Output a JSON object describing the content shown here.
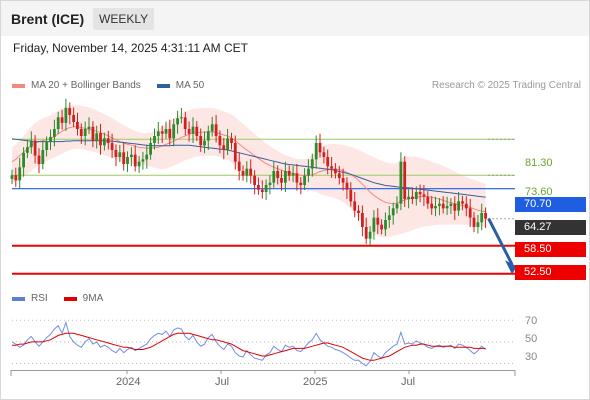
{
  "header": {
    "instrument": "Brent (ICE)",
    "timeframe": "WEEKLY"
  },
  "timestamp": "Friday, November 14, 2025 4:31:11 AM CET",
  "legend": {
    "items": [
      {
        "label": "MA 20 + Bollinger Bands",
        "color": "#f08a80"
      },
      {
        "label": "MA 50",
        "color": "#2f5f9e"
      }
    ],
    "copyright": "Research © 2025 Trading Central"
  },
  "rsi_legend": {
    "items": [
      {
        "label": "RSI",
        "color": "#5b7fd4"
      },
      {
        "label": "9MA",
        "color": "#e00000"
      }
    ]
  },
  "colors": {
    "up": "#2d8a2d",
    "down": "#d22020",
    "support": "#ee0000",
    "resistance": "#1f5ee0",
    "arrow": "#2a5fa8"
  },
  "chart_data": [
    {
      "type": "candlestick",
      "ylim": [
        50.5,
        88
      ],
      "x_ticks": [
        "2024",
        "Jul",
        "2025",
        "Jul"
      ],
      "levels": [
        {
          "label": "81.30",
          "value": 81.3,
          "kind": "target"
        },
        {
          "label": "73.60",
          "value": 73.6,
          "kind": "target"
        },
        {
          "label": "70.70",
          "value": 70.7,
          "kind": "pivot"
        },
        {
          "label": "64.27",
          "value": 64.27,
          "kind": "last"
        },
        {
          "label": "58.50",
          "value": 58.5,
          "kind": "support"
        },
        {
          "label": "52.50",
          "value": 52.5,
          "kind": "support"
        }
      ],
      "arrow": {
        "direction": "down",
        "from_value": 64.3,
        "to_value": 52.8
      },
      "close": [
        73.6,
        72.5,
        75.3,
        78.4,
        79.6,
        81.0,
        77.8,
        76.0,
        79.0,
        80.7,
        81.8,
        83.5,
        86.0,
        84.8,
        88.0,
        86.5,
        85.0,
        83.5,
        82.0,
        83.5,
        84.0,
        81.0,
        82.6,
        80.0,
        81.5,
        80.5,
        79.0,
        77.5,
        78.5,
        76.0,
        77.5,
        78.0,
        75.5,
        76.5,
        77.0,
        78.0,
        80.5,
        82.0,
        83.0,
        82.5,
        83.5,
        81.5,
        84.5,
        85.8,
        86.0,
        83.5,
        82.5,
        84.0,
        82.0,
        80.0,
        81.0,
        83.0,
        84.5,
        82.0,
        80.0,
        79.0,
        81.5,
        80.5,
        76.5,
        74.5,
        73.5,
        75.0,
        73.5,
        71.5,
        70.5,
        70.0,
        71.5,
        72.0,
        74.5,
        73.0,
        72.0,
        74.5,
        73.5,
        74.0,
        72.0,
        71.5,
        73.5,
        75.0,
        77.0,
        80.5,
        78.5,
        77.5,
        75.5,
        75.0,
        74.0,
        73.0,
        72.0,
        70.5,
        68.0,
        66.0,
        65.5,
        62.5,
        60.0,
        61.5,
        64.5,
        63.0,
        62.0,
        64.0,
        65.0,
        66.5,
        67.5,
        76.5,
        68.5,
        69.0,
        68.5,
        70.0,
        69.5,
        69.0,
        67.5,
        66.5,
        67.0,
        67.5,
        66.5,
        67.0,
        67.5,
        66.0,
        68.0,
        67.5,
        66.5,
        64.5,
        62.5,
        63.5,
        65.5,
        64.27
      ],
      "ma20": [
        76.5,
        77.0,
        77.8,
        78.5,
        79.2,
        80.0,
        80.5,
        80.8,
        81.0,
        81.2,
        81.5,
        81.8,
        82.5,
        83.0,
        83.5,
        83.8,
        84.0,
        84.0,
        83.8,
        83.6,
        83.4,
        83.2,
        83.0,
        82.7,
        82.4,
        82.0,
        81.6,
        81.2,
        80.8,
        80.5,
        80.2,
        80.0,
        79.8,
        79.6,
        79.5,
        79.4,
        79.4,
        79.5,
        79.6,
        79.9,
        80.2,
        80.5,
        80.9,
        81.3,
        81.7,
        82.0,
        82.4,
        82.6,
        82.7,
        82.8,
        82.8,
        82.9,
        82.9,
        82.7,
        82.5,
        82.2,
        82.0,
        81.6,
        81.0,
        80.3,
        79.6,
        79.0,
        78.4,
        77.8,
        77.2,
        76.6,
        76.1,
        75.7,
        75.3,
        75.0,
        74.7,
        74.4,
        74.2,
        74.0,
        73.8,
        73.6,
        73.5,
        73.6,
        73.7,
        74.0,
        74.4,
        74.6,
        74.8,
        74.9,
        74.9,
        74.8,
        74.6,
        74.2,
        73.8,
        73.2,
        72.5,
        71.7,
        70.8,
        70.0,
        69.3,
        68.7,
        68.2,
        67.8,
        67.6,
        67.5,
        67.6,
        68.0,
        68.3,
        68.5,
        68.7,
        68.9,
        69.0,
        69.1,
        69.0,
        68.9,
        68.7,
        68.5,
        68.2,
        67.9,
        67.7,
        67.5,
        67.3,
        67.1,
        66.9,
        66.7,
        66.4,
        66.1,
        65.9,
        65.8
      ],
      "bb_upper": [
        79.5,
        80.2,
        81.0,
        82.0,
        83.0,
        84.0,
        84.8,
        85.4,
        85.8,
        86.1,
        86.4,
        86.8,
        87.4,
        87.9,
        88.3,
        88.5,
        88.6,
        88.6,
        88.5,
        88.3,
        88.1,
        87.8,
        87.5,
        87.1,
        86.7,
        86.2,
        85.8,
        85.3,
        84.8,
        84.3,
        83.9,
        83.5,
        83.1,
        82.8,
        82.6,
        82.6,
        82.7,
        83.0,
        83.5,
        84.0,
        84.6,
        85.2,
        85.8,
        86.3,
        86.8,
        87.2,
        87.5,
        87.8,
        87.9,
        88.0,
        88.0,
        88.0,
        88.0,
        87.8,
        87.6,
        87.3,
        87.0,
        86.6,
        86.0,
        85.3,
        84.6,
        83.9,
        83.2,
        82.5,
        81.8,
        81.1,
        80.4,
        79.8,
        79.3,
        78.8,
        78.3,
        77.9,
        77.6,
        77.3,
        77.1,
        77.0,
        77.0,
        77.3,
        77.8,
        78.6,
        79.4,
        79.9,
        80.2,
        80.3,
        80.3,
        80.2,
        80.1,
        79.9,
        79.7,
        79.4,
        79.0,
        78.6,
        78.2,
        77.8,
        77.4,
        77.0,
        76.7,
        76.4,
        76.2,
        76.1,
        76.3,
        77.2,
        77.5,
        77.6,
        77.6,
        77.5,
        77.3,
        77.1,
        76.8,
        76.5,
        76.2,
        75.9,
        75.6,
        75.2,
        74.8,
        74.4,
        74.0,
        73.6,
        73.2,
        72.9,
        72.6,
        72.3,
        72.0,
        71.8
      ],
      "bb_lower": [
        72.0,
        72.2,
        72.6,
        73.2,
        73.8,
        74.5,
        75.2,
        75.8,
        76.2,
        76.6,
        77.0,
        77.4,
        77.8,
        78.2,
        78.6,
        79.0,
        79.2,
        79.3,
        79.2,
        79.0,
        78.8,
        78.6,
        78.4,
        78.2,
        77.9,
        77.6,
        77.3,
        76.9,
        76.6,
        76.4,
        76.2,
        76.1,
        76.0,
        75.9,
        75.8,
        75.6,
        75.4,
        75.2,
        75.0,
        74.9,
        75.0,
        75.3,
        75.6,
        76.0,
        76.4,
        76.8,
        77.1,
        77.4,
        77.6,
        77.7,
        77.7,
        77.8,
        77.8,
        77.7,
        77.5,
        77.2,
        76.8,
        76.3,
        75.6,
        74.9,
        74.2,
        73.6,
        73.1,
        72.6,
        72.1,
        71.6,
        71.2,
        70.9,
        70.7,
        70.6,
        70.6,
        70.6,
        70.6,
        70.6,
        70.6,
        70.5,
        70.4,
        70.3,
        70.2,
        70.0,
        69.6,
        69.3,
        69.1,
        68.9,
        68.6,
        68.3,
        67.8,
        67.2,
        66.4,
        65.4,
        64.4,
        63.4,
        62.4,
        61.6,
        61.0,
        60.6,
        60.3,
        60.2,
        60.3,
        60.5,
        60.8,
        61.0,
        61.3,
        61.5,
        61.8,
        62.1,
        62.4,
        62.6,
        62.7,
        62.8,
        62.9,
        63.0,
        63.0,
        63.0,
        63.0,
        63.0,
        63.0,
        63.0,
        63.0,
        62.9,
        62.8,
        62.7,
        62.6,
        62.5
      ],
      "ma50": [
        81.4,
        81.3,
        81.2,
        81.1,
        81.0,
        80.9,
        80.8,
        80.8,
        80.8,
        80.8,
        80.8,
        80.8,
        80.8,
        80.8,
        80.9,
        80.9,
        81.0,
        81.0,
        81.0,
        81.0,
        81.0,
        81.0,
        81.0,
        81.0,
        81.0,
        80.9,
        80.9,
        80.8,
        80.7,
        80.6,
        80.5,
        80.4,
        80.3,
        80.2,
        80.1,
        80.0,
        79.9,
        79.9,
        79.9,
        79.9,
        79.9,
        79.9,
        80.0,
        80.0,
        80.0,
        80.0,
        80.0,
        79.9,
        79.8,
        79.7,
        79.6,
        79.5,
        79.4,
        79.3,
        79.2,
        79.1,
        79.0,
        78.8,
        78.6,
        78.4,
        78.2,
        78.0,
        77.8,
        77.6,
        77.4,
        77.2,
        77.0,
        76.8,
        76.6,
        76.4,
        76.2,
        76.0,
        75.9,
        75.8,
        75.7,
        75.6,
        75.5,
        75.4,
        75.3,
        75.2,
        75.1,
        75.0,
        74.9,
        74.8,
        74.6,
        74.4,
        74.2,
        74.0,
        73.8,
        73.5,
        73.2,
        72.9,
        72.6,
        72.3,
        72.0,
        71.8,
        71.6,
        71.4,
        71.3,
        71.2,
        71.1,
        71.0,
        70.9,
        70.9,
        70.8,
        70.7,
        70.6,
        70.5,
        70.4,
        70.3,
        70.2,
        70.1,
        70.0,
        69.9,
        69.8,
        69.7,
        69.6,
        69.5,
        69.4,
        69.3,
        69.2,
        69.1,
        69.0,
        68.9
      ]
    },
    {
      "type": "line",
      "ylim": [
        24,
        74
      ],
      "y_ticks": [
        "70",
        "50",
        "30"
      ],
      "series": [
        {
          "name": "RSI",
          "values": [
            50,
            48,
            45,
            47,
            52,
            55,
            50,
            46,
            50,
            54,
            57,
            62,
            65,
            58,
            68,
            55,
            50,
            47,
            45,
            50,
            53,
            48,
            50,
            45,
            47,
            45,
            42,
            40,
            44,
            40,
            43,
            45,
            42,
            44,
            46,
            48,
            53,
            56,
            58,
            57,
            60,
            55,
            61,
            63,
            62,
            55,
            52,
            56,
            50,
            46,
            48,
            54,
            57,
            50,
            46,
            43,
            48,
            46,
            40,
            37,
            36,
            42,
            38,
            35,
            34,
            33,
            38,
            40,
            46,
            43,
            41,
            47,
            45,
            46,
            42,
            41,
            45,
            49,
            52,
            58,
            52,
            49,
            46,
            45,
            43,
            42,
            40,
            38,
            35,
            33,
            33,
            30,
            28,
            32,
            40,
            37,
            35,
            40,
            43,
            46,
            48,
            59,
            48,
            49,
            48,
            51,
            49,
            48,
            45,
            44,
            46,
            47,
            45,
            46,
            47,
            44,
            48,
            47,
            45,
            42,
            39,
            42,
            46,
            43
          ]
        },
        {
          "name": "9MA",
          "values": [
            47,
            47,
            48,
            48,
            49,
            50,
            50,
            50,
            50,
            51,
            52,
            54,
            56,
            57,
            58,
            58,
            58,
            57,
            56,
            55,
            54,
            53,
            52,
            51,
            50,
            49,
            48,
            47,
            46,
            45,
            45,
            44,
            43,
            43,
            43,
            44,
            45,
            47,
            49,
            51,
            53,
            55,
            57,
            58,
            58,
            58,
            58,
            57,
            56,
            55,
            54,
            53,
            52,
            52,
            51,
            50,
            49,
            48,
            46,
            44,
            42,
            41,
            40,
            39,
            38,
            37,
            37,
            38,
            39,
            40,
            41,
            42,
            43,
            44,
            44,
            44,
            44,
            45,
            46,
            47,
            48,
            49,
            49,
            48,
            47,
            46,
            45,
            43,
            41,
            39,
            37,
            35,
            34,
            33,
            33,
            34,
            35,
            36,
            37,
            39,
            41,
            43,
            45,
            46,
            47,
            47,
            48,
            48,
            47,
            46,
            46,
            46,
            46,
            46,
            46,
            45,
            45,
            45,
            45,
            45,
            44,
            44,
            44,
            44
          ]
        }
      ]
    }
  ]
}
